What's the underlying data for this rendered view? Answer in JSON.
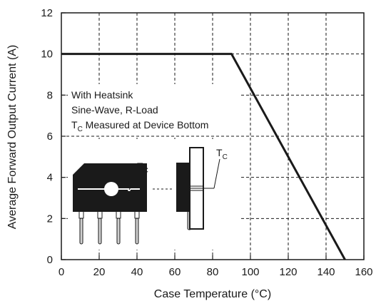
{
  "chart_data": {
    "type": "line",
    "title": "",
    "xlabel": "Case Temperature (°C)",
    "ylabel": "Average Forward Output Current (A)",
    "xlim": [
      0,
      160
    ],
    "ylim": [
      0,
      12
    ],
    "x_ticks": [
      "0",
      "20",
      "40",
      "60",
      "80",
      "100",
      "120",
      "140",
      "160"
    ],
    "y_ticks": [
      "0",
      "2",
      "4",
      "6",
      "8",
      "10",
      "12"
    ],
    "grid": true,
    "series": [
      {
        "x": [
          0,
          90,
          150
        ],
        "y": [
          10,
          10,
          0
        ],
        "color": "#1a1a1a"
      }
    ],
    "annotations": {
      "line1": "With Heatsink",
      "line2": "Sine-Wave, R-Load",
      "line3_symbol": "T",
      "line3_sub": "C",
      "line3_rest": " Measured at Device Bottom",
      "tc_symbol": "T",
      "tc_sub": "C"
    }
  }
}
